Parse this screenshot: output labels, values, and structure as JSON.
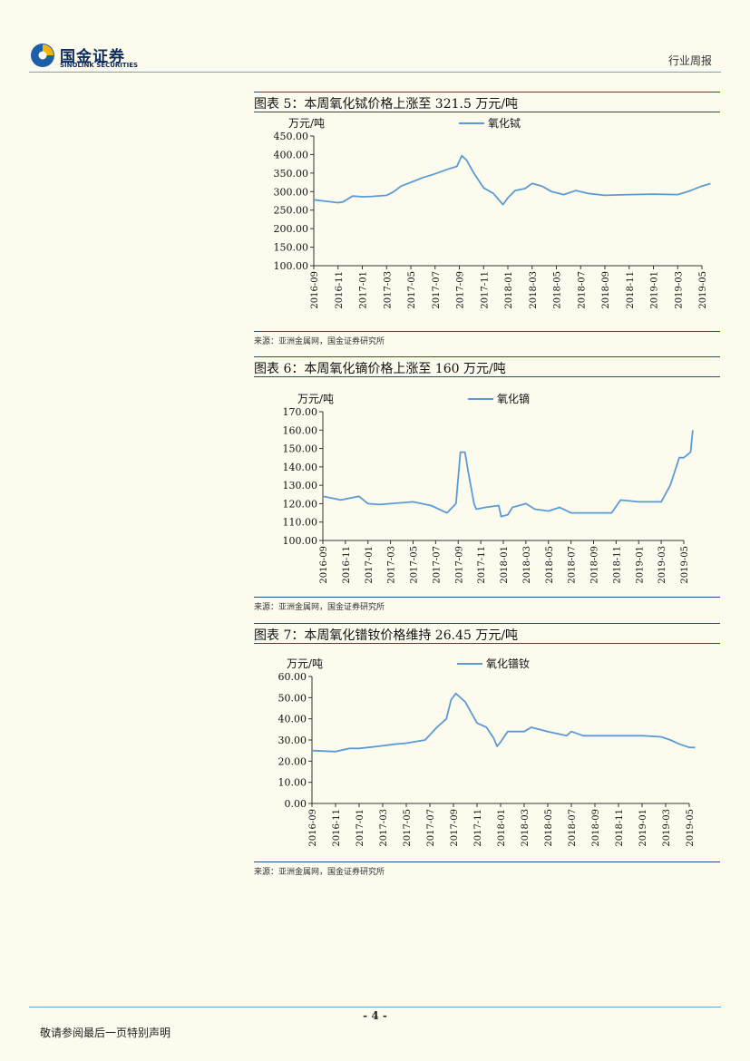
{
  "header": {
    "logo_cn": "国金证券",
    "logo_en": "SINOLINK SECURITIES",
    "report_type": "行业周报"
  },
  "figures": [
    {
      "title": "图表 5：本周氧化铽价格上涨至 321.5 万元/吨",
      "source": "来源：亚洲金属网，国金证券研究所"
    },
    {
      "title": "图表 6：本周氧化镝价格上涨至 160 万元/吨",
      "source": "来源：亚洲金属网，国金证券研究所"
    },
    {
      "title": "图表 7：本周氧化镨钕价格维持 26.45 万元/吨",
      "source": "来源：亚洲金属网，国金证券研究所"
    }
  ],
  "chart_data": [
    {
      "type": "line",
      "unit_label": "万元/吨",
      "series": [
        {
          "name": "氧化铽",
          "color": "#5b9bd5"
        }
      ],
      "ylim": [
        100,
        450
      ],
      "yticks": [
        "100.00",
        "150.00",
        "200.00",
        "250.00",
        "300.00",
        "350.00",
        "400.00",
        "450.00"
      ],
      "categories": [
        "2016-09",
        "2016-11",
        "2017-01",
        "2017-03",
        "2017-05",
        "2017-07",
        "2017-09",
        "2017-11",
        "2018-01",
        "2018-03",
        "2018-05",
        "2018-07",
        "2018-09",
        "2018-11",
        "2019-01",
        "2019-03",
        "2019-05"
      ],
      "x": [
        0,
        1,
        1.2,
        1.6,
        2,
        2.4,
        3,
        3.3,
        3.6,
        4,
        4.5,
        5,
        5.5,
        5.9,
        6.1,
        6.3,
        6.6,
        7,
        7.4,
        7.8,
        8,
        8.3,
        8.7,
        9,
        9.4,
        9.8,
        10.3,
        10.8,
        11.3,
        12,
        13,
        14,
        15,
        15.5,
        16,
        16.35
      ],
      "y": [
        278,
        270,
        272,
        288,
        286,
        287,
        290,
        300,
        315,
        325,
        338,
        348,
        360,
        368,
        397,
        385,
        350,
        310,
        295,
        265,
        283,
        303,
        308,
        322,
        315,
        300,
        292,
        303,
        295,
        290,
        292,
        293,
        292,
        302,
        315,
        321.5
      ]
    },
    {
      "type": "line",
      "unit_label": "万元/吨",
      "series": [
        {
          "name": "氧化镝",
          "color": "#5b9bd5"
        }
      ],
      "ylim": [
        100,
        170
      ],
      "yticks": [
        "100.00",
        "110.00",
        "120.00",
        "130.00",
        "140.00",
        "150.00",
        "160.00",
        "170.00"
      ],
      "categories": [
        "2016-09",
        "2016-11",
        "2017-01",
        "2017-03",
        "2017-05",
        "2017-07",
        "2017-09",
        "2017-11",
        "2018-01",
        "2018-03",
        "2018-05",
        "2018-07",
        "2018-09",
        "2018-11",
        "2019-01",
        "2019-03",
        "2019-05"
      ],
      "x": [
        0,
        0.8,
        1.6,
        2,
        2.5,
        3,
        4,
        4.8,
        5.5,
        5.9,
        6.1,
        6.3,
        6.45,
        6.7,
        6.8,
        7.2,
        7.8,
        7.9,
        8.2,
        8.4,
        9,
        9.4,
        10,
        10.5,
        11,
        11.5,
        12,
        12.8,
        13.2,
        14,
        14.5,
        15,
        15.4,
        15.8,
        16,
        16.3,
        16.4
      ],
      "y": [
        124,
        122,
        124,
        120,
        119.5,
        120,
        121,
        119,
        115,
        120,
        148,
        148,
        137,
        120,
        117,
        118,
        119,
        113,
        114,
        118,
        120,
        117,
        116,
        118,
        115,
        115,
        115,
        115,
        122,
        121,
        121,
        121,
        130,
        145,
        145,
        148,
        160
      ]
    },
    {
      "type": "line",
      "unit_label": "万元/吨",
      "series": [
        {
          "name": "氧化镨钕",
          "color": "#5b9bd5"
        }
      ],
      "ylim": [
        0,
        60
      ],
      "yticks": [
        "0.00",
        "10.00",
        "20.00",
        "30.00",
        "40.00",
        "50.00",
        "60.00"
      ],
      "categories": [
        "2016-09",
        "2016-11",
        "2017-01",
        "2017-03",
        "2017-05",
        "2017-07",
        "2017-09",
        "2017-11",
        "2018-01",
        "2018-03",
        "2018-05",
        "2018-07",
        "2018-09",
        "2018-11",
        "2019-01",
        "2019-03",
        "2019-05"
      ],
      "x": [
        0,
        1,
        1.6,
        2,
        2.8,
        3.5,
        4,
        4.8,
        5.3,
        5.7,
        5.9,
        6.1,
        6.5,
        6.7,
        7,
        7.4,
        7.7,
        7.85,
        8,
        8.3,
        9,
        9.3,
        10,
        10.8,
        11,
        11.5,
        12,
        13,
        14,
        14.8,
        15.2,
        15.6,
        16,
        16.25
      ],
      "y": [
        25,
        24.5,
        26,
        26,
        27,
        28,
        28.5,
        30,
        36,
        40,
        49,
        52,
        48,
        44,
        38,
        36,
        31,
        27,
        29,
        34,
        34,
        36,
        34,
        32,
        34,
        32,
        32,
        32,
        32,
        31.5,
        30,
        28,
        26.5,
        26.45
      ]
    }
  ],
  "footer": {
    "page_number": "- 4 -",
    "disclaimer": "敬请参阅最后一页特别声明"
  }
}
